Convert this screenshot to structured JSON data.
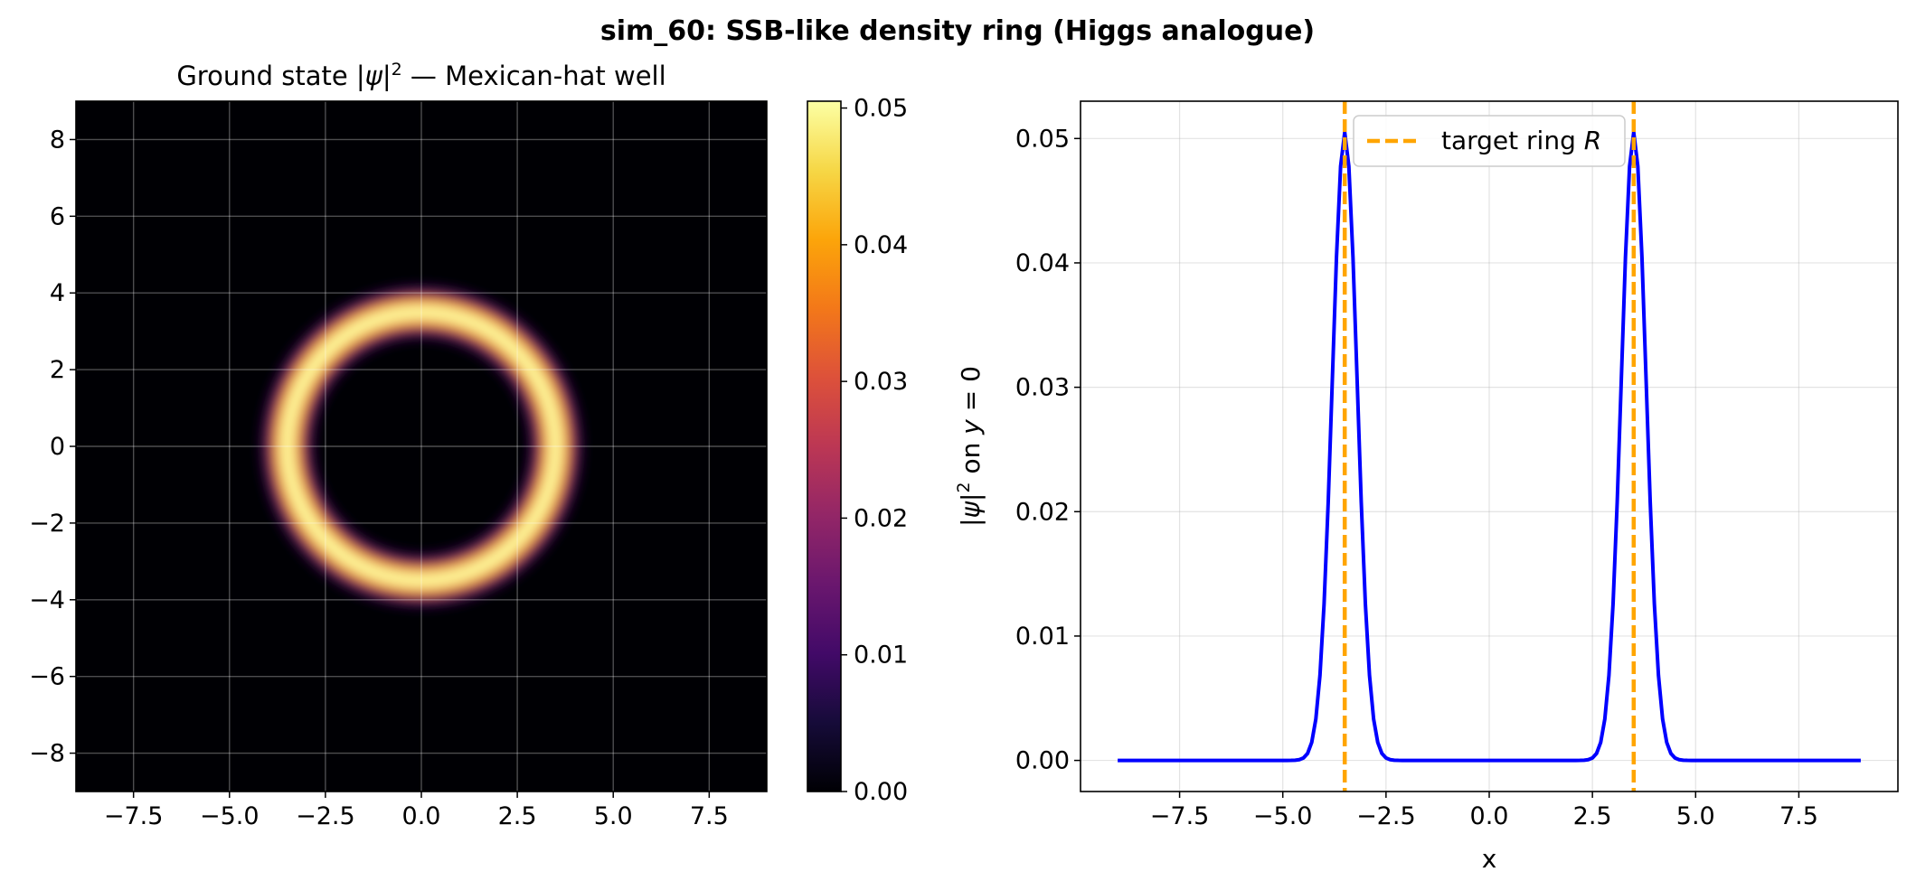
{
  "suptitle": "sim_60: SSB-like density ring (Higgs analogue)",
  "colors": {
    "ring_peak": "#fcffa4",
    "colormap": "inferno",
    "profile_line": "#0000ff",
    "target_line": "#ffa500",
    "grid": "#b0b0b0"
  },
  "chart_data": [
    {
      "type": "heatmap",
      "title_prefix": "Ground state |",
      "title_psi": "ψ",
      "title_sup": "2",
      "title_suffix": " — Mexican-hat well",
      "xlim": [
        -9,
        9
      ],
      "ylim": [
        -9,
        9
      ],
      "xticks": [
        -7.5,
        -5.0,
        -2.5,
        0.0,
        2.5,
        5.0,
        7.5
      ],
      "xtick_labels": [
        "−7.5",
        "−5.0",
        "−2.5",
        "0.0",
        "2.5",
        "5.0",
        "7.5"
      ],
      "yticks": [
        8,
        6,
        4,
        2,
        0,
        -2,
        -4,
        -6,
        -8
      ],
      "ytick_labels": [
        "8",
        "6",
        "4",
        "2",
        "0",
        "−2",
        "−4",
        "−6",
        "−8"
      ],
      "grid": true,
      "ring_radius": 3.5,
      "ring_sigma": 0.3,
      "peak_density": 0.0505,
      "colorbar": {
        "colormap": "inferno",
        "range": [
          0.0,
          0.0505
        ],
        "ticks": [
          0.0,
          0.01,
          0.02,
          0.03,
          0.04,
          0.05
        ],
        "tick_labels": [
          "0.00",
          "0.01",
          "0.02",
          "0.03",
          "0.04",
          "0.05"
        ]
      }
    },
    {
      "type": "line",
      "xlabel": "x",
      "ylabel_prefix": "|",
      "ylabel_psi": "ψ",
      "ylabel_sup": "2",
      "ylabel_mid": " on ",
      "ylabel_y": "y",
      "ylabel_eq": " = 0",
      "xlim": [
        -9.9,
        9.9
      ],
      "ylim": [
        -0.0025,
        0.053
      ],
      "xticks": [
        -7.5,
        -5.0,
        -2.5,
        0.0,
        2.5,
        5.0,
        7.5
      ],
      "xtick_labels": [
        "−7.5",
        "−5.0",
        "−2.5",
        "0.0",
        "2.5",
        "5.0",
        "7.5"
      ],
      "yticks": [
        0.0,
        0.01,
        0.02,
        0.03,
        0.04,
        0.05
      ],
      "ytick_labels": [
        "0.00",
        "0.01",
        "0.02",
        "0.03",
        "0.04",
        "0.05"
      ],
      "grid": true,
      "legend_placement": "top-center",
      "series": [
        {
          "kind": "line",
          "x_range": [
            -9,
            9
          ],
          "peaks": [
            -3.5,
            3.5
          ],
          "peak_value": 0.0505,
          "sigma": 0.3,
          "samples": 181
        }
      ],
      "target_lines": [
        -3.5,
        3.5
      ],
      "legend": {
        "label_prefix": "target ring ",
        "label_var": "R"
      }
    }
  ]
}
